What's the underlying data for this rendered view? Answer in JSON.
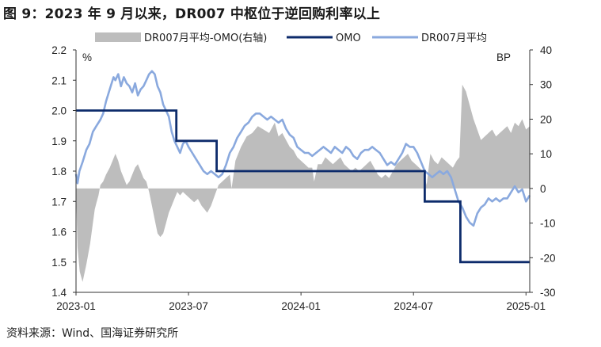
{
  "title": "图 9：2023 年 9 月以来，DR007 中枢位于逆回购利率以上",
  "source": "资料来源：Wind、国海证券研究所",
  "colors": {
    "spread": "#bdbdbd",
    "omo": "#0d2b6b",
    "dr007": "#8aa9de",
    "axis": "#333333"
  },
  "chart_data": {
    "type": "line",
    "title": "图 9：2023 年 9 月以来，DR007 中枢位于逆回购利率以上",
    "left_axis": {
      "unit": "%",
      "min": 1.4,
      "max": 2.2,
      "ticks": [
        "1.4",
        "1.5",
        "1.6",
        "1.7",
        "1.8",
        "1.9",
        "2.0",
        "2.1",
        "2.2"
      ]
    },
    "right_axis": {
      "unit": "BP",
      "min": -30,
      "max": 40,
      "ticks": [
        "-30",
        "-20",
        "-10",
        "0",
        "10",
        "20",
        "30",
        "40"
      ]
    },
    "x_ticks": [
      "2023-01",
      "2023-07",
      "2024-01",
      "2024-07",
      "2025-01"
    ],
    "legend": [
      "DR007月平均-OMO(右轴)",
      "OMO",
      "DR007月平均"
    ],
    "series": [
      {
        "name": "OMO",
        "axis": "left",
        "type": "step",
        "points": [
          [
            0,
            2.0
          ],
          [
            5.35,
            2.0
          ],
          [
            5.35,
            1.9
          ],
          [
            7.5,
            1.9
          ],
          [
            7.5,
            1.8
          ],
          [
            18.6,
            1.8
          ],
          [
            18.6,
            1.7
          ],
          [
            20.5,
            1.7
          ],
          [
            20.5,
            1.5
          ],
          [
            24.2,
            1.5
          ]
        ]
      },
      {
        "name": "DR007月平均",
        "axis": "left",
        "type": "line",
        "points": [
          [
            0.0,
            1.79
          ],
          [
            0.08,
            1.76
          ],
          [
            0.18,
            1.8
          ],
          [
            0.35,
            1.83
          ],
          [
            0.55,
            1.87
          ],
          [
            0.72,
            1.89
          ],
          [
            0.9,
            1.93
          ],
          [
            1.1,
            1.95
          ],
          [
            1.3,
            1.97
          ],
          [
            1.45,
            1.99
          ],
          [
            1.6,
            2.03
          ],
          [
            1.75,
            2.06
          ],
          [
            1.85,
            2.08
          ],
          [
            2.0,
            2.11
          ],
          [
            2.1,
            2.1
          ],
          [
            2.25,
            2.12
          ],
          [
            2.4,
            2.08
          ],
          [
            2.55,
            2.11
          ],
          [
            2.7,
            2.09
          ],
          [
            2.85,
            2.08
          ],
          [
            3.0,
            2.06
          ],
          [
            3.15,
            2.09
          ],
          [
            3.3,
            2.05
          ],
          [
            3.45,
            2.07
          ],
          [
            3.6,
            2.08
          ],
          [
            3.75,
            2.1
          ],
          [
            3.9,
            2.12
          ],
          [
            4.05,
            2.13
          ],
          [
            4.2,
            2.12
          ],
          [
            4.35,
            2.08
          ],
          [
            4.5,
            2.06
          ],
          [
            4.65,
            2.02
          ],
          [
            4.8,
            2.0
          ],
          [
            4.95,
            1.98
          ],
          [
            5.1,
            1.93
          ],
          [
            5.25,
            1.9
          ],
          [
            5.4,
            1.88
          ],
          [
            5.55,
            1.86
          ],
          [
            5.7,
            1.89
          ],
          [
            5.85,
            1.9
          ],
          [
            6.0,
            1.88
          ],
          [
            6.2,
            1.86
          ],
          [
            6.4,
            1.84
          ],
          [
            6.6,
            1.82
          ],
          [
            6.8,
            1.8
          ],
          [
            7.0,
            1.79
          ],
          [
            7.2,
            1.8
          ],
          [
            7.4,
            1.79
          ],
          [
            7.6,
            1.78
          ],
          [
            7.8,
            1.79
          ],
          [
            8.0,
            1.82
          ],
          [
            8.2,
            1.86
          ],
          [
            8.4,
            1.88
          ],
          [
            8.6,
            1.91
          ],
          [
            8.8,
            1.93
          ],
          [
            9.0,
            1.95
          ],
          [
            9.2,
            1.96
          ],
          [
            9.4,
            1.98
          ],
          [
            9.6,
            1.99
          ],
          [
            9.8,
            1.99
          ],
          [
            10.0,
            1.98
          ],
          [
            10.2,
            1.97
          ],
          [
            10.4,
            1.98
          ],
          [
            10.6,
            1.97
          ],
          [
            10.8,
            1.96
          ],
          [
            11.0,
            1.97
          ],
          [
            11.2,
            1.94
          ],
          [
            11.4,
            1.92
          ],
          [
            11.6,
            1.91
          ],
          [
            11.8,
            1.88
          ],
          [
            12.0,
            1.87
          ],
          [
            12.2,
            1.86
          ],
          [
            12.4,
            1.86
          ],
          [
            12.6,
            1.85
          ],
          [
            12.8,
            1.86
          ],
          [
            13.0,
            1.87
          ],
          [
            13.2,
            1.88
          ],
          [
            13.4,
            1.87
          ],
          [
            13.6,
            1.86
          ],
          [
            13.8,
            1.88
          ],
          [
            14.0,
            1.87
          ],
          [
            14.2,
            1.86
          ],
          [
            14.4,
            1.88
          ],
          [
            14.6,
            1.87
          ],
          [
            14.8,
            1.85
          ],
          [
            15.0,
            1.84
          ],
          [
            15.2,
            1.86
          ],
          [
            15.4,
            1.87
          ],
          [
            15.6,
            1.87
          ],
          [
            15.8,
            1.88
          ],
          [
            16.0,
            1.87
          ],
          [
            16.2,
            1.86
          ],
          [
            16.4,
            1.84
          ],
          [
            16.6,
            1.82
          ],
          [
            16.8,
            1.83
          ],
          [
            17.0,
            1.82
          ],
          [
            17.2,
            1.84
          ],
          [
            17.4,
            1.86
          ],
          [
            17.6,
            1.89
          ],
          [
            17.8,
            1.88
          ],
          [
            18.0,
            1.88
          ],
          [
            18.2,
            1.86
          ],
          [
            18.4,
            1.83
          ],
          [
            18.6,
            1.8
          ],
          [
            18.8,
            1.79
          ],
          [
            19.0,
            1.78
          ],
          [
            19.2,
            1.79
          ],
          [
            19.4,
            1.8
          ],
          [
            19.6,
            1.79
          ],
          [
            19.8,
            1.8
          ],
          [
            20.0,
            1.78
          ],
          [
            20.2,
            1.74
          ],
          [
            20.4,
            1.7
          ],
          [
            20.6,
            1.68
          ],
          [
            20.8,
            1.65
          ],
          [
            21.0,
            1.63
          ],
          [
            21.2,
            1.62
          ],
          [
            21.4,
            1.66
          ],
          [
            21.6,
            1.68
          ],
          [
            21.8,
            1.69
          ],
          [
            22.0,
            1.71
          ],
          [
            22.2,
            1.7
          ],
          [
            22.4,
            1.71
          ],
          [
            22.6,
            1.7
          ],
          [
            22.8,
            1.71
          ],
          [
            23.0,
            1.71
          ],
          [
            23.2,
            1.73
          ],
          [
            23.4,
            1.75
          ],
          [
            23.6,
            1.73
          ],
          [
            23.8,
            1.74
          ],
          [
            24.0,
            1.7
          ],
          [
            24.2,
            1.72
          ]
        ]
      },
      {
        "name": "DR007月平均-OMO(右轴)",
        "axis": "right",
        "type": "area",
        "points": [
          [
            0.0,
            -1
          ],
          [
            0.08,
            -17
          ],
          [
            0.2,
            -24
          ],
          [
            0.35,
            -27
          ],
          [
            0.55,
            -22
          ],
          [
            0.75,
            -16
          ],
          [
            0.9,
            -10
          ],
          [
            1.0,
            -6
          ],
          [
            1.1,
            -4
          ],
          [
            1.2,
            -2
          ],
          [
            1.3,
            1
          ],
          [
            1.45,
            2
          ],
          [
            1.6,
            4
          ],
          [
            1.8,
            6
          ],
          [
            1.95,
            8
          ],
          [
            2.1,
            10
          ],
          [
            2.25,
            8
          ],
          [
            2.4,
            5
          ],
          [
            2.55,
            3
          ],
          [
            2.7,
            1
          ],
          [
            2.85,
            2
          ],
          [
            3.0,
            4
          ],
          [
            3.15,
            6
          ],
          [
            3.3,
            7
          ],
          [
            3.45,
            5
          ],
          [
            3.6,
            3
          ],
          [
            3.75,
            2
          ],
          [
            3.9,
            -1
          ],
          [
            4.05,
            -5
          ],
          [
            4.2,
            -9
          ],
          [
            4.35,
            -13
          ],
          [
            4.5,
            -14
          ],
          [
            4.65,
            -13
          ],
          [
            4.8,
            -10
          ],
          [
            4.95,
            -7
          ],
          [
            5.1,
            -5
          ],
          [
            5.25,
            -3
          ],
          [
            5.4,
            -1
          ],
          [
            5.55,
            -2
          ],
          [
            5.7,
            -1
          ],
          [
            5.9,
            -2
          ],
          [
            6.1,
            -3
          ],
          [
            6.3,
            -4
          ],
          [
            6.5,
            -3
          ],
          [
            6.7,
            -5
          ],
          [
            6.85,
            -6
          ],
          [
            7.0,
            -7
          ],
          [
            7.2,
            -5
          ],
          [
            7.4,
            -2
          ],
          [
            7.6,
            1
          ],
          [
            7.8,
            2
          ],
          [
            8.0,
            3
          ],
          [
            8.2,
            4
          ],
          [
            8.3,
            0
          ],
          [
            8.5,
            8
          ],
          [
            8.8,
            12
          ],
          [
            9.1,
            15
          ],
          [
            9.4,
            16
          ],
          [
            9.7,
            18
          ],
          [
            10.0,
            17
          ],
          [
            10.3,
            16
          ],
          [
            10.6,
            19
          ],
          [
            10.8,
            15
          ],
          [
            11.0,
            16
          ],
          [
            11.2,
            14
          ],
          [
            11.4,
            12
          ],
          [
            11.6,
            11
          ],
          [
            11.8,
            9
          ],
          [
            12.0,
            8
          ],
          [
            12.2,
            7
          ],
          [
            12.4,
            6
          ],
          [
            12.6,
            6
          ],
          [
            12.7,
            2
          ],
          [
            12.9,
            7
          ],
          [
            13.1,
            7
          ],
          [
            13.3,
            9
          ],
          [
            13.5,
            8
          ],
          [
            13.7,
            7
          ],
          [
            13.9,
            8
          ],
          [
            14.1,
            9
          ],
          [
            14.3,
            7
          ],
          [
            14.5,
            6
          ],
          [
            14.7,
            5
          ],
          [
            14.9,
            6
          ],
          [
            15.1,
            5
          ],
          [
            15.3,
            6
          ],
          [
            15.5,
            7
          ],
          [
            15.7,
            8
          ],
          [
            15.9,
            6
          ],
          [
            16.1,
            4
          ],
          [
            16.3,
            3
          ],
          [
            16.5,
            4
          ],
          [
            16.7,
            3
          ],
          [
            16.9,
            5
          ],
          [
            17.1,
            7
          ],
          [
            17.3,
            8
          ],
          [
            17.5,
            9
          ],
          [
            17.7,
            10
          ],
          [
            17.9,
            8
          ],
          [
            18.1,
            7
          ],
          [
            18.3,
            6
          ],
          [
            18.5,
            5
          ],
          [
            18.7,
            1
          ],
          [
            18.9,
            10
          ],
          [
            19.1,
            8
          ],
          [
            19.3,
            7
          ],
          [
            19.5,
            9
          ],
          [
            19.7,
            8
          ],
          [
            19.9,
            7
          ],
          [
            20.1,
            6
          ],
          [
            20.3,
            8
          ],
          [
            20.45,
            9
          ],
          [
            20.6,
            30
          ],
          [
            20.8,
            28
          ],
          [
            21.0,
            24
          ],
          [
            21.2,
            20
          ],
          [
            21.4,
            17
          ],
          [
            21.6,
            14
          ],
          [
            21.8,
            15
          ],
          [
            22.0,
            16
          ],
          [
            22.2,
            17
          ],
          [
            22.4,
            15
          ],
          [
            22.6,
            16
          ],
          [
            22.8,
            17
          ],
          [
            23.0,
            18
          ],
          [
            23.2,
            16
          ],
          [
            23.4,
            19
          ],
          [
            23.6,
            18
          ],
          [
            23.8,
            20
          ],
          [
            24.0,
            17
          ],
          [
            24.2,
            18
          ]
        ]
      }
    ]
  }
}
